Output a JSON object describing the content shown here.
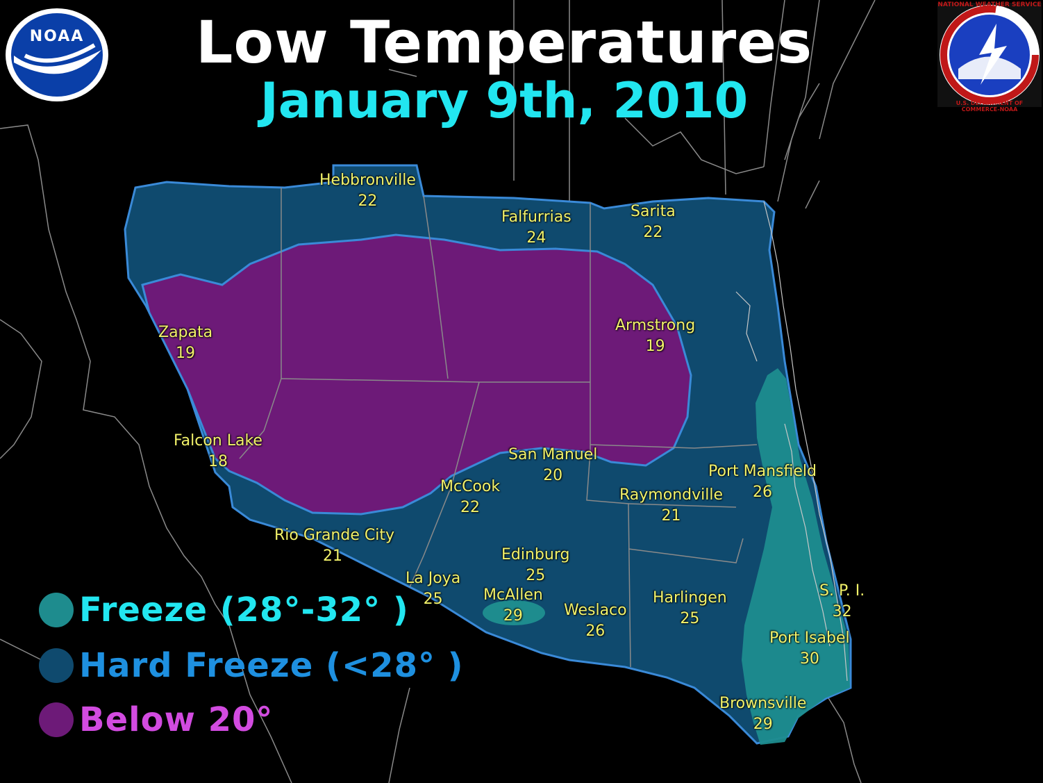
{
  "title": "Low Temperatures",
  "subtitle": "January 9th, 2010",
  "logos": {
    "noaa_text": "NOAA",
    "nws_text": "NATIONAL WEATHER SERVICE",
    "doc_text": "U.S. DEPARTMENT OF COMMERCE-NOAA"
  },
  "colors": {
    "freeze": "#1e8c8e",
    "hard_freeze": "#0f4a6e",
    "below_20": "#6d1a78",
    "title": "#ffffff",
    "subtitle": "#22e6f0",
    "station_label": "#f2f26a"
  },
  "legend": [
    {
      "label": "Freeze (28°-32° )",
      "color": "#1e8c8e",
      "text_color": "#22e6f0"
    },
    {
      "label": "Hard Freeze (<28° )",
      "color": "#0f4a6e",
      "text_color": "#1e90e0"
    },
    {
      "label": "Below 20°",
      "color": "#6d1a78",
      "text_color": "#d24be0"
    }
  ],
  "stations": [
    {
      "name": "Hebbronville",
      "temp": "22"
    },
    {
      "name": "Falfurrias",
      "temp": "24"
    },
    {
      "name": "Sarita",
      "temp": "22"
    },
    {
      "name": "Zapata",
      "temp": "19"
    },
    {
      "name": "Armstrong",
      "temp": "19"
    },
    {
      "name": "Falcon Lake",
      "temp": "18"
    },
    {
      "name": "San Manuel",
      "temp": "20"
    },
    {
      "name": "Port Mansfield",
      "temp": "26"
    },
    {
      "name": "McCook",
      "temp": "22"
    },
    {
      "name": "Raymondville",
      "temp": "21"
    },
    {
      "name": "Rio Grande City",
      "temp": "21"
    },
    {
      "name": "Edinburg",
      "temp": "25"
    },
    {
      "name": "La Joya",
      "temp": "25"
    },
    {
      "name": "McAllen",
      "temp": "29"
    },
    {
      "name": "Weslaco",
      "temp": "26"
    },
    {
      "name": "Harlingen",
      "temp": "25"
    },
    {
      "name": "S. P. I.",
      "temp": "32"
    },
    {
      "name": "Port Isabel",
      "temp": "30"
    },
    {
      "name": "Brownsville",
      "temp": "29"
    }
  ]
}
